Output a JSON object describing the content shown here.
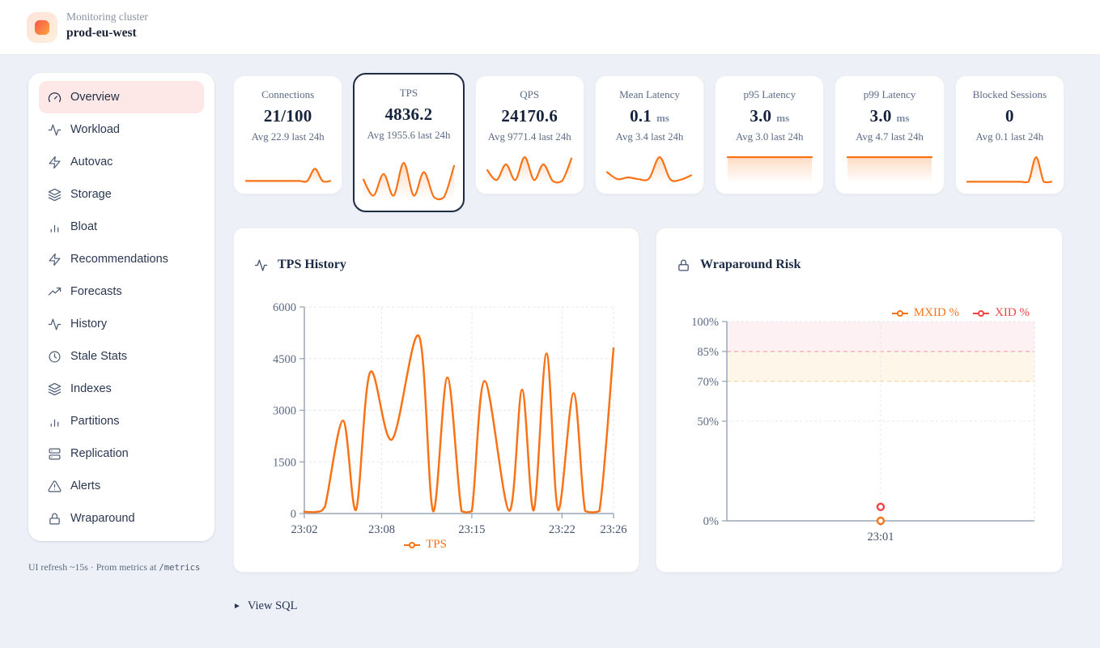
{
  "colors": {
    "accent_orange": "#f97316",
    "series_red": "#ef4444",
    "navy": "#1e2b42",
    "muted_text": "#5b6b85",
    "active_nav_bg": "#fde8e7",
    "grid": "#e2e8f0",
    "spine": "#9aa7b8"
  },
  "header": {
    "subtitle": "Monitoring cluster",
    "title": "prod-eu-west"
  },
  "sidebar": {
    "items": [
      {
        "label": "Overview",
        "icon": "gauge-icon",
        "active": true
      },
      {
        "label": "Workload",
        "icon": "activity-icon",
        "active": false
      },
      {
        "label": "Autovac",
        "icon": "zap-icon",
        "active": false
      },
      {
        "label": "Storage",
        "icon": "layers-icon",
        "active": false
      },
      {
        "label": "Bloat",
        "icon": "bar-chart-icon",
        "active": false
      },
      {
        "label": "Recommendations",
        "icon": "zap-icon",
        "active": false
      },
      {
        "label": "Forecasts",
        "icon": "trending-up-icon",
        "active": false
      },
      {
        "label": "History",
        "icon": "activity-icon",
        "active": false
      },
      {
        "label": "Stale Stats",
        "icon": "clock-icon",
        "active": false
      },
      {
        "label": "Indexes",
        "icon": "layers-icon",
        "active": false
      },
      {
        "label": "Partitions",
        "icon": "bar-chart-icon",
        "active": false
      },
      {
        "label": "Replication",
        "icon": "server-icon",
        "active": false
      },
      {
        "label": "Alerts",
        "icon": "alert-triangle-icon",
        "active": false
      },
      {
        "label": "Wraparound",
        "icon": "lock-icon",
        "active": false
      }
    ],
    "footer_text": "UI refresh ~15s · Prom metrics at ",
    "footer_code": "/metrics"
  },
  "cards": [
    {
      "label": "Connections",
      "value": "21/100",
      "unit": "",
      "sub": "Avg 22.9 last 24h",
      "selected": false,
      "spark": [
        0.08,
        0.08,
        0.08,
        0.08,
        0.08,
        0.08,
        0.08,
        0.08,
        0.08,
        0.55,
        0.08,
        0.08
      ]
    },
    {
      "label": "TPS",
      "value": "4836.2",
      "unit": "",
      "sub": "Avg 1955.6 last 24h",
      "selected": true,
      "spark": [
        0.55,
        0.12,
        0.7,
        0.12,
        1.0,
        0.12,
        0.75,
        0.08,
        0.08,
        0.92
      ]
    },
    {
      "label": "QPS",
      "value": "24170.6",
      "unit": "",
      "sub": "Avg 9771.4 last 24h",
      "selected": false,
      "spark": [
        0.5,
        0.12,
        0.72,
        0.12,
        1.0,
        0.12,
        0.72,
        0.08,
        0.08,
        0.95
      ]
    },
    {
      "label": "Mean Latency",
      "value": "0.1",
      "unit": "ms",
      "sub": "Avg 3.4 last 24h",
      "selected": false,
      "spark": [
        0.42,
        0.15,
        0.22,
        0.15,
        0.18,
        1.0,
        0.15,
        0.13,
        0.3
      ]
    },
    {
      "label": "p95 Latency",
      "value": "3.0",
      "unit": "ms",
      "sub": "Avg 3.0 last 24h",
      "selected": false,
      "spark": [
        1,
        1
      ]
    },
    {
      "label": "p99 Latency",
      "value": "3.0",
      "unit": "ms",
      "sub": "Avg 4.7 last 24h",
      "selected": false,
      "spark": [
        1,
        1
      ]
    },
    {
      "label": "Blocked Sessions",
      "value": "0",
      "unit": "",
      "sub": "Avg 0.1 last 24h",
      "selected": false,
      "spark": [
        0.05,
        0.05,
        0.05,
        0.05,
        0.05,
        0.05,
        0.05,
        0.05,
        0.05,
        1.0,
        0.05,
        0.05
      ]
    }
  ],
  "panels": {
    "tps_history": {
      "title": "TPS History"
    },
    "wraparound": {
      "title": "Wraparound Risk"
    }
  },
  "view_sql": {
    "label": "View SQL"
  },
  "chart_data": [
    {
      "id": "tps_history",
      "type": "line",
      "title": "TPS History",
      "ylabel": "",
      "ylim": [
        0,
        6000
      ],
      "y_ticks": [
        0,
        1500,
        3000,
        4500,
        6000
      ],
      "x_range_minutes": [
        0,
        24
      ],
      "x_ticks": [
        {
          "label": "23:02",
          "minute": 0
        },
        {
          "label": "23:08",
          "minute": 6
        },
        {
          "label": "23:15",
          "minute": 13
        },
        {
          "label": "23:22",
          "minute": 20
        },
        {
          "label": "23:26",
          "minute": 24
        }
      ],
      "grid": true,
      "legend_position": "bottom",
      "series": [
        {
          "name": "TPS",
          "color": "#f97316",
          "x_minutes": [
            0,
            1,
            1.6,
            3,
            4,
            5.1,
            6.8,
            8.9,
            10,
            11.1,
            12.2,
            13,
            14,
            15.9,
            16.9,
            17.8,
            18.8,
            19.7,
            20.9,
            21.8,
            22.9,
            24
          ],
          "values": [
            50,
            50,
            200,
            2700,
            100,
            4100,
            2150,
            5150,
            60,
            3950,
            70,
            70,
            3850,
            80,
            3600,
            90,
            4650,
            100,
            3500,
            70,
            70,
            4800
          ]
        }
      ]
    },
    {
      "id": "wraparound_risk",
      "type": "scatter",
      "title": "Wraparound Risk",
      "ylim": [
        0,
        100
      ],
      "y_ticks": [
        {
          "label": "0%",
          "value": 0
        },
        {
          "label": "50%",
          "value": 50
        },
        {
          "label": "70%",
          "value": 70
        },
        {
          "label": "85%",
          "value": 85
        },
        {
          "label": "100%",
          "value": 100
        }
      ],
      "x_ticks": [
        {
          "label": "23:01",
          "fraction": 0.5
        }
      ],
      "grid": true,
      "legend_position": "top-right",
      "bands": [
        {
          "from": 85,
          "to": 100,
          "fill": "rgba(244,63,94,0.07)",
          "line_color": "#f6a7ab"
        },
        {
          "from": 70,
          "to": 85,
          "fill": "rgba(245,158,11,0.09)",
          "line_color": "#f8d39a"
        }
      ],
      "series": [
        {
          "name": "MXID %",
          "color": "#f97316",
          "points": [
            {
              "x_fraction": 0.5,
              "value": 0
            }
          ]
        },
        {
          "name": "XID %",
          "color": "#ef4444",
          "points": [
            {
              "x_fraction": 0.5,
              "value": 7
            }
          ]
        }
      ]
    }
  ]
}
